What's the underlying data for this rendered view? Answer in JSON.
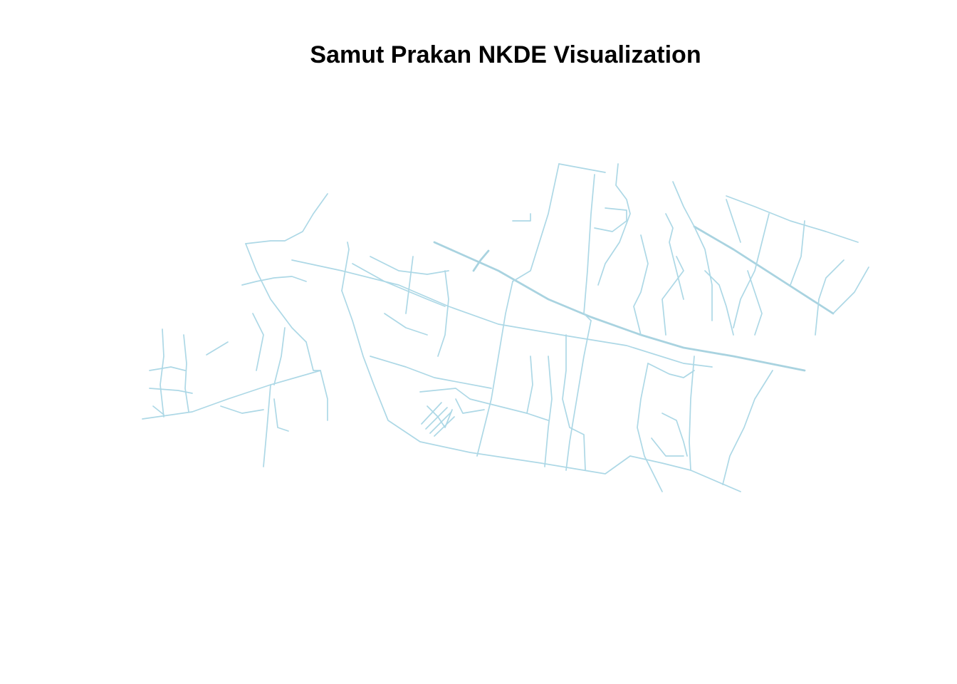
{
  "title": "Samut Prakan NKDE Visualization",
  "road_color": "#add8e6",
  "major_road_color": "#a9d3e0"
}
